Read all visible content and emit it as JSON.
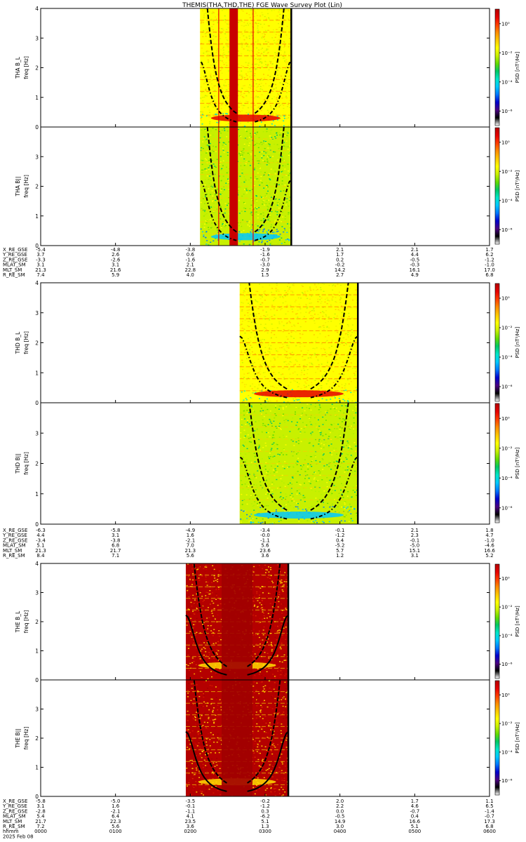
{
  "title": "THEMIS(THA,THD,THE) FGE Wave Survey Plot (Lin)",
  "colors": {
    "background": "#ffffff",
    "axis": "#000000",
    "fce_lines": "#000000"
  },
  "colorbar": {
    "stops": [
      "#ffffff",
      "#000000",
      "#4b0082",
      "#0000cd",
      "#0078ff",
      "#00c8ff",
      "#00e6c8",
      "#00c864",
      "#64dc00",
      "#c8f000",
      "#ffff00",
      "#ffc800",
      "#ff8c00",
      "#ff3c00",
      "#e60000",
      "#b40000"
    ],
    "label": "PSD [nT²/Hz]",
    "tick_labels": [
      "10⁰",
      "10⁻²",
      "10⁻⁴",
      "10⁻⁶"
    ],
    "tick_exponents": [
      0,
      -2,
      -4,
      -6
    ],
    "range_exponent": [
      -7,
      1
    ]
  },
  "time_axis": {
    "labels": [
      "0000",
      "0100",
      "0200",
      "0300",
      "0400",
      "0500",
      "0600"
    ],
    "hours": [
      0,
      1,
      2,
      3,
      4,
      5,
      6
    ],
    "label_name": "hhmm",
    "date_label": "2025 Feb 08"
  },
  "chart_data": [
    {
      "type": "heatmap",
      "probe": "THA",
      "component": "B_L",
      "ylabel_top": "THA B_L",
      "ylabel": "freq [Hz]",
      "ylim": [
        0,
        4
      ],
      "yticks": [
        0,
        1,
        2,
        3,
        4
      ],
      "data_start_hour": 2.13,
      "data_end_hour": 3.35,
      "plot_end_hour": 3.35,
      "spike_hour": 2.58,
      "side_lines_hours": [
        2.38,
        2.84
      ],
      "band_hz": 0.3,
      "style": "warm"
    },
    {
      "type": "heatmap",
      "probe": "THA",
      "component": "B_par",
      "ylabel_top": "THA B||",
      "ylabel": "freq [Hz]",
      "ylim": [
        0,
        4
      ],
      "yticks": [
        0,
        1,
        2,
        3
      ],
      "data_start_hour": 2.13,
      "data_end_hour": 3.35,
      "plot_end_hour": 3.35,
      "spike_hour": 2.58,
      "side_lines_hours": [
        2.38,
        2.84
      ],
      "band_hz": 0.3,
      "style": "cool"
    },
    {
      "type": "heatmap",
      "probe": "THD",
      "component": "B_L",
      "ylabel_top": "THD B_L",
      "ylabel": "freq [Hz]",
      "ylim": [
        0,
        4
      ],
      "yticks": [
        0,
        1,
        2,
        3,
        4
      ],
      "data_start_hour": 2.66,
      "data_end_hour": 4.24,
      "plot_end_hour": 4.24,
      "band_hz": 0.3,
      "style": "warm"
    },
    {
      "type": "heatmap",
      "probe": "THD",
      "component": "B_par",
      "ylabel_top": "THD B||",
      "ylabel": "freq [Hz]",
      "ylim": [
        0,
        4
      ],
      "yticks": [
        0,
        1,
        2,
        3
      ],
      "data_start_hour": 2.66,
      "data_end_hour": 4.24,
      "plot_end_hour": 4.24,
      "band_hz": 0.3,
      "style": "cool"
    },
    {
      "type": "heatmap",
      "probe": "THE",
      "component": "B_L",
      "ylabel_top": "THE B_L",
      "ylabel": "freq [Hz]",
      "ylim": [
        0,
        4
      ],
      "yticks": [
        0,
        1,
        2,
        3,
        4
      ],
      "data_start_hour": 1.94,
      "data_end_hour": 3.31,
      "plot_end_hour": 3.31,
      "band_hz": 0.5,
      "style": "red"
    },
    {
      "type": "heatmap",
      "probe": "THE",
      "component": "B_par",
      "ylabel_top": "THE B||",
      "ylabel": "freq [Hz]",
      "ylim": [
        0,
        4
      ],
      "yticks": [
        0,
        1,
        2,
        3
      ],
      "data_start_hour": 1.94,
      "data_end_hour": 3.31,
      "plot_end_hour": 3.31,
      "band_hz": 0.5,
      "style": "red"
    }
  ],
  "ephemeris": [
    {
      "probe": "THA",
      "rows": [
        {
          "label": "X_RE_GSE",
          "values": [
            "-5.4",
            "-4.8",
            "-3.8",
            "-1.9",
            "2.1",
            "2.1",
            "1.7"
          ]
        },
        {
          "label": "Y_RE_GSE",
          "values": [
            "3.7",
            "2.6",
            "0.6",
            "-1.6",
            "1.7",
            "4.4",
            "6.2"
          ]
        },
        {
          "label": "Z_RE_GSE",
          "values": [
            "-3.3",
            "-2.6",
            "-1.6",
            "-0.7",
            "0.2",
            "-0.5",
            "-1.2"
          ]
        },
        {
          "label": "MLAT_SM",
          "values": [
            "3.1",
            "3.1",
            "2.1",
            "-3.0",
            "-0.2",
            "-0.3",
            "-1.0"
          ]
        },
        {
          "label": "MLT_SM",
          "values": [
            "21.3",
            "21.6",
            "22.8",
            "2.9",
            "14.2",
            "16.1",
            "17.0"
          ]
        },
        {
          "label": "R_RE_SM",
          "values": [
            "7.4",
            "5.9",
            "4.0",
            "1.5",
            "2.7",
            "4.9",
            "6.8"
          ]
        }
      ]
    },
    {
      "probe": "THD",
      "rows": [
        {
          "label": "X_RE_GSE",
          "values": [
            "-6.3",
            "-5.8",
            "-4.9",
            "-3.4",
            "-0.1",
            "2.1",
            "1.8"
          ]
        },
        {
          "label": "Y_RE_GSE",
          "values": [
            "4.4",
            "3.1",
            "1.6",
            "-0.0",
            "-1.2",
            "2.3",
            "4.7"
          ]
        },
        {
          "label": "Z_RE_GSE",
          "values": [
            "-3.4",
            "-3.8",
            "-2.1",
            "-1.1",
            "0.4",
            "-0.1",
            "-1.0"
          ]
        },
        {
          "label": "MLAT_SM",
          "values": [
            "5.1",
            "6.8",
            "7.0",
            "5.6",
            "-5.2",
            "-5.0",
            "-4.6"
          ]
        },
        {
          "label": "MLT_SM",
          "values": [
            "21.3",
            "21.7",
            "21.3",
            "23.6",
            "5.7",
            "15.1",
            "16.6"
          ]
        },
        {
          "label": "R_RE_SM",
          "values": [
            "8.4",
            "7.1",
            "5.6",
            "3.6",
            "1.2",
            "3.1",
            "5.2"
          ]
        }
      ]
    },
    {
      "probe": "THE",
      "rows": [
        {
          "label": "X_RE_GSE",
          "values": [
            "-5.8",
            "-5.0",
            "-3.5",
            "-0.2",
            "2.0",
            "1.7",
            "1.1"
          ]
        },
        {
          "label": "Y_RE_GSE",
          "values": [
            "3.1",
            "1.6",
            "-0.1",
            "-1.2",
            "2.2",
            "4.6",
            "6.5"
          ]
        },
        {
          "label": "Z_RE_GSE",
          "values": [
            "-2.8",
            "-2.1",
            "-1.1",
            "0.3",
            "0.0",
            "-0.7",
            "-1.4"
          ]
        },
        {
          "label": "MLAT_SM",
          "values": [
            "5.4",
            "6.4",
            "4.1",
            "-6.2",
            "-0.5",
            "0.4",
            "-0.7"
          ]
        },
        {
          "label": "MLT_SM",
          "values": [
            "21.7",
            "22.3",
            "23.5",
            "5.1",
            "14.9",
            "16.6",
            "17.3"
          ]
        },
        {
          "label": "R_RE_SM",
          "values": [
            "7.2",
            "5.6",
            "3.6",
            "1.3",
            "3.0",
            "5.1",
            "6.8"
          ]
        }
      ]
    }
  ]
}
